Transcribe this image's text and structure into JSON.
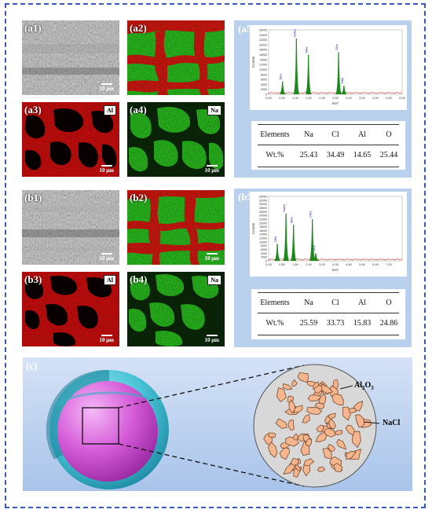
{
  "panels": {
    "a1": {
      "label": "(a1)",
      "scale": "10 μm"
    },
    "a2": {
      "label": "(a2)"
    },
    "a3": {
      "label": "(a3)",
      "element": "Al",
      "scale": "10 μm"
    },
    "a4": {
      "label": "(a4)",
      "element": "Na",
      "scale": "10 μm"
    },
    "b1": {
      "label": "(b1)",
      "scale": "10 μm"
    },
    "b2": {
      "label": "(b2)",
      "scale": "10 μm"
    },
    "b3": {
      "label": "(b3)",
      "element": "Al",
      "scale": "10 μm"
    },
    "b4": {
      "label": "(b4)",
      "element": "Na",
      "scale": "10 μm"
    },
    "a5": {
      "label": "(a5)"
    },
    "b5": {
      "label": "(b5)"
    },
    "c": {
      "label": "(c)",
      "al2o3": "Al",
      "al2o3_sub1": "2",
      "al2o3_mid": "O",
      "al2o3_sub2": "3",
      "nacl": "NaCl"
    }
  },
  "tables": {
    "a5": {
      "header": [
        "Elements",
        "Na",
        "Cl",
        "Al",
        "O"
      ],
      "row": [
        "Wt.%",
        "25.43",
        "34.49",
        "14.65",
        "25.44"
      ]
    },
    "b5": {
      "header": [
        "Elements",
        "Na",
        "Cl",
        "Al",
        "O"
      ],
      "row": [
        "Wt.%",
        "25.59",
        "33.73",
        "15.83",
        "24.86"
      ]
    }
  },
  "colors": {
    "al_map": "#e01010",
    "na_map": "#2bc21f",
    "spectrum": "#1a8a1a",
    "side_panel": "#b9d1ec",
    "frame": "#3a5bb5"
  },
  "chart_data": [
    {
      "type": "bar",
      "xlabel": "keV",
      "ylabel": "Counts",
      "xlim": [
        0,
        5
      ],
      "ylim": [
        0,
        26000
      ],
      "x_ticks": [
        "0.00",
        "0.50",
        "1.00",
        "1.50",
        "2.00",
        "2.50",
        "3.00",
        "3.50",
        "4.00",
        "4.50",
        "5.00"
      ],
      "y_ticks": [
        "0",
        "2000",
        "4000",
        "6000",
        "8000",
        "10000",
        "12000",
        "14000",
        "16000",
        "18000",
        "20000",
        "22000",
        "24000",
        "26000"
      ],
      "peaks": [
        {
          "label": "OKa",
          "x": 0.52,
          "y": 5200
        },
        {
          "label": "NaKa",
          "x": 1.04,
          "y": 22500
        },
        {
          "label": "AlKa",
          "x": 1.49,
          "y": 16000
        },
        {
          "label": "ClKa",
          "x": 2.62,
          "y": 17000
        },
        {
          "label": "ClKb",
          "x": 2.82,
          "y": 3500
        }
      ]
    },
    {
      "type": "bar",
      "xlabel": "keV",
      "ylabel": "Counts",
      "xlim": [
        0,
        8
      ],
      "ylim": [
        0,
        34000
      ],
      "x_ticks": [
        "0.00",
        "0.80",
        "1.60",
        "2.40",
        "3.20",
        "4.00",
        "4.80",
        "5.60",
        "6.40",
        "7.20"
      ],
      "y_ticks": [
        "0",
        "2000",
        "4000",
        "6000",
        "8000",
        "10000",
        "12000",
        "14000",
        "16000",
        "18000",
        "20000",
        "22000",
        "24000",
        "26000",
        "28000",
        "30000",
        "32000",
        "34000"
      ],
      "peaks": [
        {
          "label": "OKa",
          "x": 0.52,
          "y": 9000
        },
        {
          "label": "NaKa",
          "x": 1.04,
          "y": 25000
        },
        {
          "label": "AlKa",
          "x": 1.49,
          "y": 19000
        },
        {
          "label": "ClKa",
          "x": 2.62,
          "y": 22000
        },
        {
          "label": "ClKb",
          "x": 2.82,
          "y": 4000
        }
      ]
    }
  ]
}
